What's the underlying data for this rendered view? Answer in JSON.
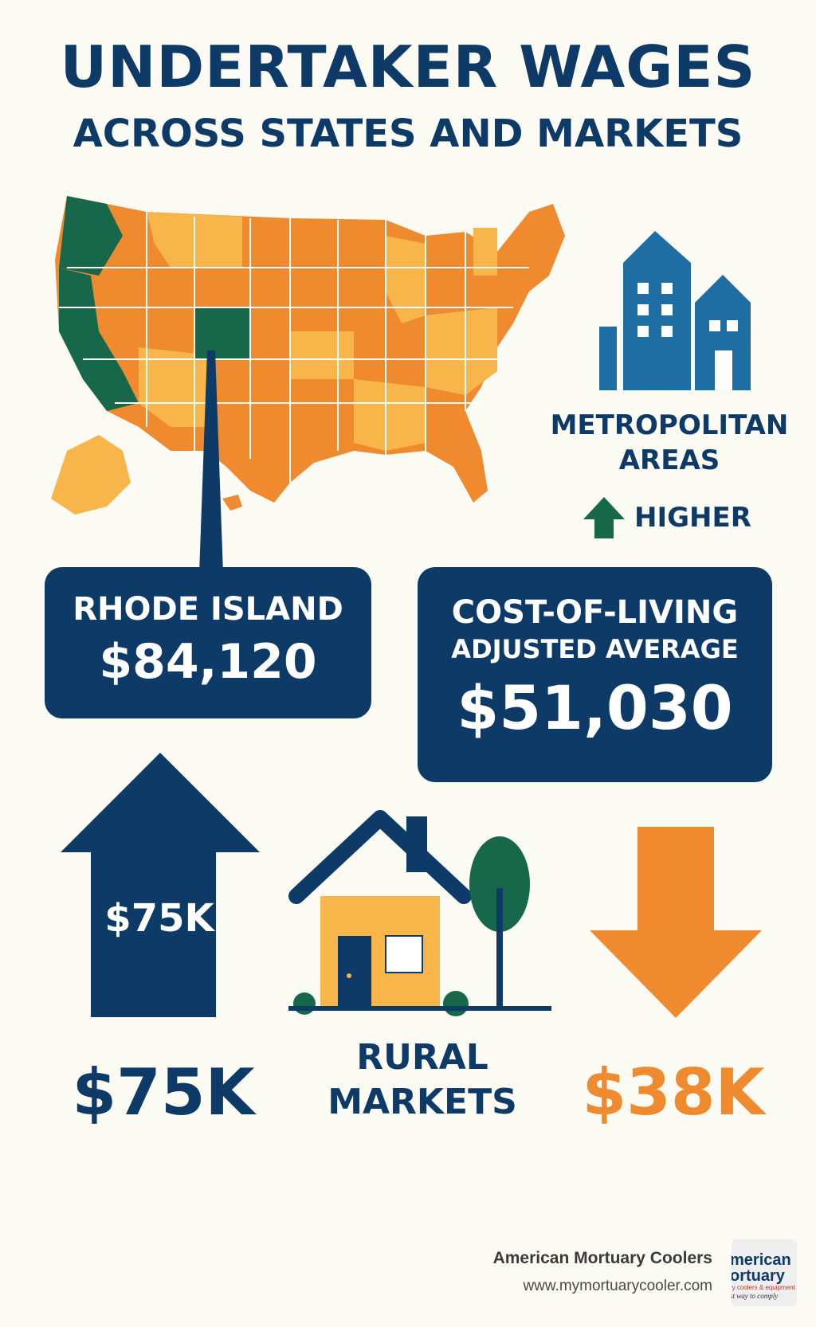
{
  "header": {
    "title_line1": "UNDERTAKER WAGES",
    "title_line2": "ACROSS STATES AND MARKETS"
  },
  "metro": {
    "label_line1": "METROPOLITAN",
    "label_line2": "AREAS",
    "trend_label": "HIGHER",
    "icon": "buildings-icon",
    "trend_icon": "arrow-up-icon"
  },
  "state_callout": {
    "state": "RHODE ISLAND",
    "value": "$84,120"
  },
  "cost_of_living": {
    "line1": "COST-OF-LIVING",
    "line2": "ADJUSTED AVERAGE",
    "value": "$51,030"
  },
  "range": {
    "up_arrow_label": "$75K",
    "high_value": "$75K",
    "rural_line1": "RURAL",
    "rural_line2": "MARKETS",
    "low_value": "$38K",
    "house_icon": "house-icon",
    "down_icon": "arrow-down-icon"
  },
  "footer": {
    "brand": "American Mortuary Coolers",
    "url": "www.mymortuarycooler.com",
    "logo_line1": "merican",
    "logo_line2": "ortuary",
    "logo_line3": "ry coolers & equipment",
    "logo_line4": "st way to comply"
  },
  "colors": {
    "navy": "#0e3a67",
    "orange": "#ef8a2e",
    "light_orange": "#f7b54a",
    "green": "#17674a",
    "blue": "#1f6ea3",
    "background": "#fbfaf3"
  }
}
